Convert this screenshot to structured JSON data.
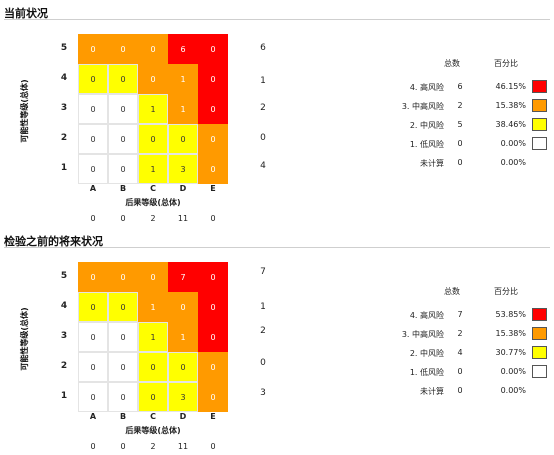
{
  "colors": {
    "high": "#ff0000",
    "medium_high": "#ff9a00",
    "medium": "#ffff00",
    "low": "#ffffff"
  },
  "sections": [
    {
      "title": "当前状况",
      "y_axis_label": "可能性等级(总体)",
      "x_axis_label": "后果等级(总体)",
      "row_levels": [
        "5",
        "4",
        "3",
        "2",
        "1"
      ],
      "col_levels": [
        "A",
        "B",
        "C",
        "D",
        "E"
      ],
      "cell_values": [
        [
          "0",
          "0",
          "0",
          "6",
          "0"
        ],
        [
          "0",
          "0",
          "0",
          "1",
          "0"
        ],
        [
          "0",
          "0",
          "1",
          "1",
          "0"
        ],
        [
          "0",
          "0",
          "0",
          "0",
          "0"
        ],
        [
          "0",
          "0",
          "1",
          "3",
          "0"
        ]
      ],
      "cell_colors": [
        [
          "orange",
          "orange",
          "orange",
          "red",
          "red"
        ],
        [
          "yellow",
          "yellow",
          "orange",
          "orange",
          "red"
        ],
        [
          "white",
          "white",
          "yellow",
          "orange",
          "red"
        ],
        [
          "white",
          "white",
          "yellow",
          "yellow",
          "orange"
        ],
        [
          "white",
          "white",
          "yellow",
          "yellow",
          "orange"
        ]
      ],
      "row_totals": [
        "6",
        "1",
        "2",
        "0",
        "4"
      ],
      "col_totals": [
        "0",
        "0",
        "2",
        "11",
        "0"
      ],
      "legend": {
        "count_header": "总数",
        "pct_header": "百分比",
        "rows": [
          {
            "label": "4. 高风险",
            "count": "6",
            "pct": "46.15%",
            "swatch": "high"
          },
          {
            "label": "3. 中高风险",
            "count": "2",
            "pct": "15.38%",
            "swatch": "medium_high"
          },
          {
            "label": "2. 中风险",
            "count": "5",
            "pct": "38.46%",
            "swatch": "medium"
          },
          {
            "label": "1. 低风险",
            "count": "0",
            "pct": "0.00%",
            "swatch": "low"
          },
          {
            "label": "未计算",
            "count": "0",
            "pct": "0.00%",
            "swatch": ""
          }
        ]
      }
    },
    {
      "title": "检验之前的将来状况",
      "y_axis_label": "可能性等级(总体)",
      "x_axis_label": "后果等级(总体)",
      "row_levels": [
        "5",
        "4",
        "3",
        "2",
        "1"
      ],
      "col_levels": [
        "A",
        "B",
        "C",
        "D",
        "E"
      ],
      "cell_values": [
        [
          "0",
          "0",
          "0",
          "7",
          "0"
        ],
        [
          "0",
          "0",
          "1",
          "0",
          "0"
        ],
        [
          "0",
          "0",
          "1",
          "1",
          "0"
        ],
        [
          "0",
          "0",
          "0",
          "0",
          "0"
        ],
        [
          "0",
          "0",
          "0",
          "3",
          "0"
        ]
      ],
      "cell_colors": [
        [
          "orange",
          "orange",
          "orange",
          "red",
          "red"
        ],
        [
          "yellow",
          "yellow",
          "orange",
          "orange",
          "red"
        ],
        [
          "white",
          "white",
          "yellow",
          "orange",
          "red"
        ],
        [
          "white",
          "white",
          "yellow",
          "yellow",
          "orange"
        ],
        [
          "white",
          "white",
          "yellow",
          "yellow",
          "orange"
        ]
      ],
      "row_totals": [
        "7",
        "1",
        "2",
        "0",
        "3"
      ],
      "col_totals": [
        "0",
        "0",
        "2",
        "11",
        "0"
      ],
      "legend": {
        "count_header": "总数",
        "pct_header": "百分比",
        "rows": [
          {
            "label": "4. 高风险",
            "count": "7",
            "pct": "53.85%",
            "swatch": "high"
          },
          {
            "label": "3. 中高风险",
            "count": "2",
            "pct": "15.38%",
            "swatch": "medium_high"
          },
          {
            "label": "2. 中风险",
            "count": "4",
            "pct": "30.77%",
            "swatch": "medium"
          },
          {
            "label": "1. 低风险",
            "count": "0",
            "pct": "0.00%",
            "swatch": "low"
          },
          {
            "label": "未计算",
            "count": "0",
            "pct": "0.00%",
            "swatch": ""
          }
        ]
      }
    }
  ]
}
